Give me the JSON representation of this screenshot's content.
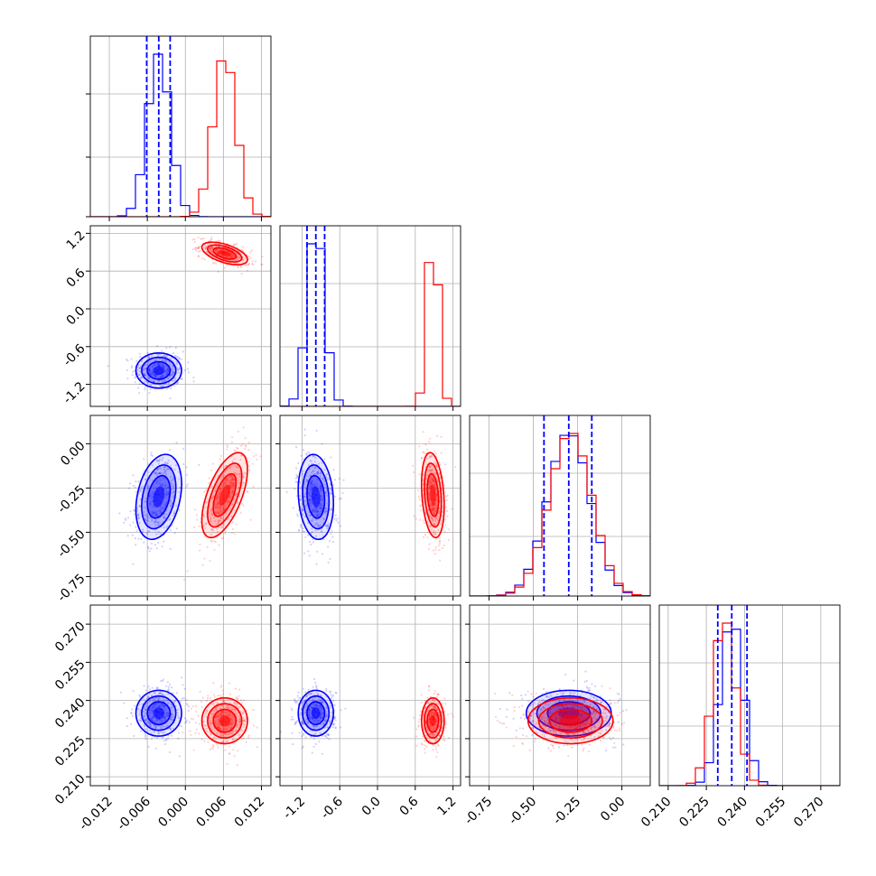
{
  "chart_data": {
    "type": "corner",
    "title": "",
    "series": [
      {
        "color": "#0000ff",
        "mean": [
          -0.0042,
          -0.98,
          -0.3,
          0.235
        ],
        "sigma": [
          0.0018,
          0.14,
          0.12,
          0.0045
        ],
        "corr_xy": {
          "1-0": 0.0,
          "2-0": 0.3,
          "2-1": -0.15,
          "3-0": 0.0,
          "3-1": 0.0,
          "3-2": 0.0
        },
        "quantiles": [
          [
            -0.0061,
            -0.0042,
            -0.0024
          ],
          [
            -1.12,
            -0.98,
            -0.84
          ],
          [
            -0.44,
            -0.3,
            -0.17
          ],
          [
            0.2295,
            0.235,
            0.241
          ]
        ]
      },
      {
        "color": "#ff0000",
        "mean": [
          0.0062,
          0.88,
          -0.29,
          0.232
        ],
        "sigma": [
          0.0018,
          0.09,
          0.12,
          0.0045
        ],
        "corr_xy": {
          "1-0": -0.55,
          "2-0": 0.6,
          "2-1": -0.25,
          "3-0": 0.0,
          "3-1": 0.0,
          "3-2": 0.0
        }
      }
    ],
    "axes": [
      {
        "range": [
          -0.015,
          0.0135
        ],
        "ticks": [
          "-0.012",
          "-0.006",
          "0.000",
          "0.006",
          "0.012"
        ],
        "tick_values": [
          -0.012,
          -0.006,
          0.0,
          0.006,
          0.012
        ]
      },
      {
        "range": [
          -1.55,
          1.32
        ],
        "ticks": [
          "-1.2",
          "-0.6",
          "0.0",
          "0.6",
          "1.2"
        ],
        "tick_values": [
          -1.2,
          -0.6,
          0.0,
          0.6,
          1.2
        ]
      },
      {
        "range": [
          -0.86,
          0.16
        ],
        "ticks": [
          "-0.75",
          "-0.50",
          "-0.25",
          "0.00"
        ],
        "tick_values": [
          -0.75,
          -0.5,
          -0.25,
          0.0
        ]
      },
      {
        "range": [
          0.2065,
          0.2775
        ],
        "ticks": [
          "0.210",
          "0.225",
          "0.240",
          "0.255",
          "0.270"
        ],
        "tick_values": [
          0.21,
          0.225,
          0.24,
          0.255,
          0.27
        ]
      }
    ],
    "grid": true,
    "legend": "none"
  }
}
